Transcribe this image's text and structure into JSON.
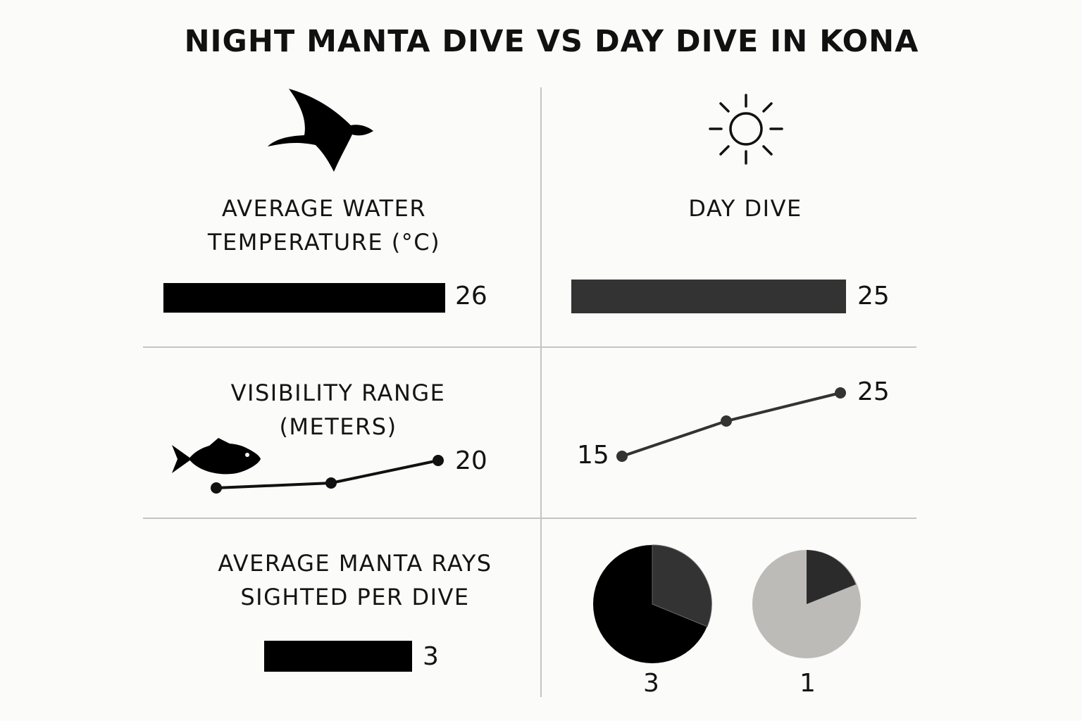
{
  "title": "NIGHT MANTA DIVE VS DAY DIVE IN KONA",
  "colors": {
    "night": "#000000",
    "day": "#333333",
    "day_light": "#bdbbb7",
    "rule": "#c4c4c4"
  },
  "icons": {
    "night": "manta-ray-icon",
    "day": "sun-icon",
    "visibility": "fish-icon"
  },
  "labels": {
    "temperature": [
      "AVERAGE WATER",
      "TEMPERATURE (°C)"
    ],
    "day_header": "DAY DIVE",
    "visibility": [
      "VISIBILITY RANGE",
      "(METERS)"
    ],
    "mantas": [
      "AVERAGE MANTA RAYS",
      "SIGHTED PER DIVE"
    ]
  },
  "chart_data": [
    {
      "type": "bar",
      "title": "AVERAGE WATER TEMPERATURE (°C)",
      "series": [
        {
          "name": "",
          "values": [
            26
          ]
        },
        {
          "name": "DAY DIVE",
          "values": [
            25
          ]
        }
      ],
      "value_labels": [
        "26",
        "25"
      ]
    },
    {
      "type": "line",
      "title": "VISIBILITY RANGE (METERS)",
      "series": [
        {
          "name": "",
          "values": [
            null,
            null,
            20
          ],
          "end_label": "20"
        },
        {
          "name": "DAY DIVE",
          "values": [
            15,
            null,
            25
          ],
          "start_label": "15",
          "end_label": "25"
        }
      ]
    },
    {
      "type": "bar",
      "title": "AVERAGE MANTA RAYS SIGHTED PER DIVE",
      "series": [
        {
          "name": "",
          "values": [
            3
          ]
        }
      ],
      "value_labels": [
        "3"
      ]
    },
    {
      "type": "pie",
      "slices": [
        {
          "label": "3",
          "dark_fraction": 0.68,
          "secondary_fraction": 0.32
        },
        {
          "label": "1",
          "dark_fraction": 0.2,
          "secondary_fraction": 0.8
        }
      ]
    }
  ]
}
